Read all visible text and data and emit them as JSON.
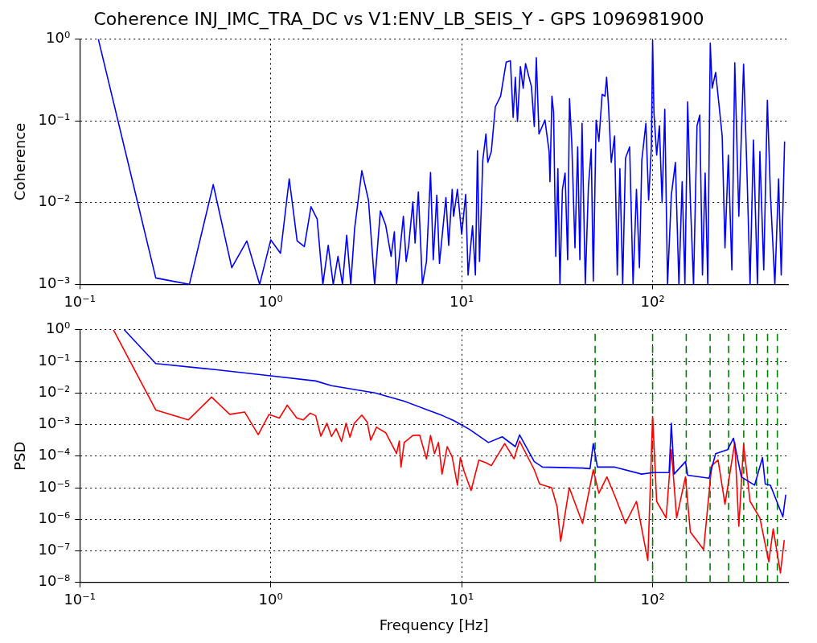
{
  "chart_data": [
    {
      "type": "line",
      "title": "Coherence INJ_IMC_TRA_DC vs V1:ENV_LB_SEIS_Y - GPS 1096981900",
      "ylabel": "Coherence",
      "log": "xy",
      "grid": true,
      "color": "#0000ff",
      "xlim": [
        0.1,
        512
      ],
      "xticks": [
        {
          "value": 0.1,
          "label": "10⁻¹"
        },
        {
          "value": 1,
          "label": "10⁰"
        },
        {
          "value": 10,
          "label": "10¹"
        },
        {
          "value": 100,
          "label": "10²"
        }
      ],
      "ylim": [
        0.001,
        1
      ],
      "yticks": [
        {
          "value": 0.001,
          "label": "10⁻³"
        },
        {
          "value": 0.01,
          "label": "10⁻²"
        },
        {
          "value": 0.1,
          "label": "10⁻¹"
        },
        {
          "value": 1,
          "label": "10⁰"
        }
      ],
      "x": [
        0.125,
        0.25,
        0.375,
        0.5,
        0.625,
        0.75,
        0.875,
        1.0,
        1.125,
        1.25,
        1.375,
        1.5,
        1.625,
        1.75,
        1.875,
        2.0,
        2.125,
        2.25,
        2.375,
        2.5,
        2.625,
        2.75,
        3.0,
        3.25,
        3.5,
        3.75,
        4.0,
        4.27,
        4.44,
        4.56,
        4.71,
        4.95,
        5.12,
        5.28,
        5.55,
        5.7,
        5.93,
        6.23,
        6.54,
        6.87,
        7.1,
        7.41,
        7.65,
        8.27,
        8.55,
        8.92,
        9.07,
        9.5,
        10,
        10.5,
        10.8,
        11.4,
        11.8,
        12.1,
        12.4,
        12.9,
        13.4,
        13.7,
        14.3,
        15,
        16,
        17.1,
        18,
        18.6,
        19.1,
        19.6,
        20.3,
        21,
        21.6,
        23.2,
        24,
        24.6,
        25.4,
        27.3,
        28.7,
        29,
        29.7,
        30.3,
        31.1,
        31.9,
        32.7,
        33.7,
        34.8,
        35.9,
        36.7,
        37.7,
        39.2,
        40.5,
        41.6,
        42.7,
        44.4,
        46.1,
        47.7,
        48.9,
        50.6,
        52.3,
        54.4,
        56.3,
        57.4,
        58.7,
        60.7,
        63.2,
        65.3,
        67.4,
        69.7,
        72.1,
        75.8,
        79,
        82.3,
        85.3,
        87.8,
        92.2,
        95.3,
        98.5,
        100,
        101.6,
        105,
        108.5,
        112.1,
        115.8,
        119.7,
        125.3,
        131.6,
        137.3,
        142.8,
        147.6,
        152.6,
        157.6,
        163.8,
        170.8,
        176.5,
        182.4,
        188.4,
        194.5,
        200.4,
        205,
        213.8,
        222.6,
        231.4,
        239.3,
        249.2,
        260,
        269.3,
        282.8,
        299.5,
        311.6,
        323.8,
        337.3,
        354,
        364.5,
        381.9,
        398.9,
        414.1,
        436.7,
        456.8,
        471.5,
        491.1
      ],
      "values": [
        1,
        0.0012,
        0.001,
        0.0166,
        0.0016,
        0.0034,
        0.001,
        0.0035,
        0.0024,
        0.0195,
        0.0034,
        0.0029,
        0.0089,
        0.0063,
        0.001,
        0.003,
        0.001,
        0.0022,
        0.001,
        0.004,
        0.001,
        0.0048,
        0.0245,
        0.0107,
        0.001,
        0.0079,
        0.0053,
        0.0022,
        0.0044,
        0.001,
        0.0021,
        0.0068,
        0.0019,
        0.003,
        0.0102,
        0.0032,
        0.0135,
        0.001,
        0.0019,
        0.0234,
        0.002,
        0.0123,
        0.0018,
        0.0115,
        0.003,
        0.0145,
        0.0068,
        0.0145,
        0.0041,
        0.0126,
        0.0013,
        0.0052,
        0.0013,
        0.043,
        0.0019,
        0.033,
        0.069,
        0.031,
        0.042,
        0.148,
        0.2,
        0.52,
        0.54,
        0.11,
        0.34,
        0.098,
        0.46,
        0.25,
        0.5,
        0.26,
        0.085,
        0.59,
        0.069,
        0.102,
        0.042,
        0.018,
        0.2,
        0.126,
        0.0022,
        0.026,
        0.001,
        0.0145,
        0.023,
        0.002,
        0.186,
        0.056,
        0.0028,
        0.048,
        0.002,
        0.093,
        0.001,
        0.0155,
        0.045,
        0.0011,
        0.102,
        0.056,
        0.21,
        0.2,
        0.34,
        0.158,
        0.031,
        0.065,
        0.0013,
        0.026,
        0.001,
        0.035,
        0.048,
        0.001,
        0.0145,
        0.0016,
        0.033,
        0.093,
        0.0107,
        0.048,
        0.96,
        0.126,
        0.038,
        0.087,
        0.01,
        0.138,
        0.001,
        0.0123,
        0.031,
        0.001,
        0.018,
        0.001,
        0.17,
        0.0107,
        0.001,
        0.087,
        0.117,
        0.0013,
        0.023,
        0.001,
        0.89,
        0.25,
        0.39,
        0.158,
        0.065,
        0.0028,
        0.038,
        0.0015,
        0.51,
        0.0068,
        0.49,
        0.026,
        0.001,
        0.058,
        0.001,
        0.042,
        0.0015,
        0.178,
        0.0123,
        0.001,
        0.0195,
        0.0013,
        0.056
      ]
    },
    {
      "type": "line",
      "xlabel": "Frequency [Hz]",
      "ylabel": "PSD",
      "log": "xy",
      "grid": true,
      "xlim": [
        0.1,
        512
      ],
      "xticks": [
        {
          "value": 0.1,
          "label": "10⁻¹"
        },
        {
          "value": 1,
          "label": "10⁰"
        },
        {
          "value": 10,
          "label": "10¹"
        },
        {
          "value": 100,
          "label": "10²"
        }
      ],
      "ylim": [
        1e-08,
        1
      ],
      "yticks": [
        {
          "value": 1e-08,
          "label": "10⁻⁸"
        },
        {
          "value": 1e-07,
          "label": "10⁻⁷"
        },
        {
          "value": 1e-06,
          "label": "10⁻⁶"
        },
        {
          "value": 1e-05,
          "label": "10⁻⁵"
        },
        {
          "value": 0.0001,
          "label": "10⁻⁴"
        },
        {
          "value": 0.001,
          "label": "10⁻³"
        },
        {
          "value": 0.01,
          "label": "10⁻²"
        },
        {
          "value": 0.1,
          "label": "10⁻¹"
        },
        {
          "value": 1,
          "label": "10⁰"
        }
      ],
      "ref_lines": [
        {
          "axis": "x",
          "value": 50,
          "color": "#008000",
          "line_style": "dashed"
        },
        {
          "axis": "x",
          "value": 100,
          "color": "#008000",
          "line_style": "dashed"
        },
        {
          "axis": "x",
          "value": 150,
          "color": "#008000",
          "line_style": "dashed"
        },
        {
          "axis": "x",
          "value": 200,
          "color": "#008000",
          "line_style": "dashed"
        },
        {
          "axis": "x",
          "value": 250,
          "color": "#008000",
          "line_style": "dashed"
        },
        {
          "axis": "x",
          "value": 300,
          "color": "#008000",
          "line_style": "dashed"
        },
        {
          "axis": "x",
          "value": 350,
          "color": "#008000",
          "line_style": "dashed"
        },
        {
          "axis": "x",
          "value": 400,
          "color": "#008000",
          "line_style": "dashed"
        },
        {
          "axis": "x",
          "value": 450,
          "color": "#008000",
          "line_style": "dashed"
        }
      ],
      "series": [
        {
          "color": "#0000ff",
          "x": [
            0.171,
            0.25,
            0.51,
            1.0,
            1.72,
            2.08,
            3.52,
            5.0,
            7.97,
            9.07,
            11,
            13.8,
            16.3,
            19.1,
            20.1,
            24,
            26.5,
            43,
            47,
            48.9,
            51.4,
            63.4,
            87.6,
            100,
            122,
            125.3,
            129.6,
            148.6,
            152.6,
            197.5,
            213.8,
            246.9,
            265,
            291.5,
            342,
            376,
            389,
            414,
            481,
            498
          ],
          "values": [
            1,
            0.085,
            0.055,
            0.035,
            0.024,
            0.017,
            0.01,
            0.0055,
            0.0019,
            0.00135,
            0.0007,
            0.00027,
            0.00041,
            0.0002,
            0.00047,
            6.7e-05,
            4.5e-05,
            4.2e-05,
            4e-05,
            0.00025,
            4.5e-05,
            4.5e-05,
            2.7e-05,
            3e-05,
            3e-05,
            0.0011,
            2.7e-05,
            6.7e-05,
            2.5e-05,
            2e-05,
            0.00012,
            0.00016,
            0.00037,
            2.2e-05,
            1.2e-05,
            9e-05,
            1.3e-05,
            1.2e-05,
            1.2e-06,
            6e-06
          ]
        },
        {
          "color": "#ff0000",
          "x": [
            0.15,
            0.25,
            0.37,
            0.49,
            0.61,
            0.73,
            0.86,
            0.98,
            1.11,
            1.22,
            1.37,
            1.48,
            1.61,
            1.72,
            1.83,
            1.97,
            2.08,
            2.2,
            2.35,
            2.48,
            2.6,
            2.74,
            3.0,
            3.2,
            3.34,
            3.58,
            4.0,
            4.56,
            4.71,
            4.81,
            5.0,
            5.55,
            6.03,
            6.54,
            6.87,
            7.2,
            7.56,
            7.89,
            8.4,
            8.92,
            9.5,
            9.84,
            10.3,
            11.2,
            12.3,
            13.4,
            14.3,
            16.8,
            18.8,
            20.1,
            24,
            25.6,
            29.6,
            31.6,
            33,
            36.6,
            43,
            48.9,
            52.3,
            57.6,
            63.4,
            72.1,
            82.3,
            94.4,
            100,
            105,
            117.7,
            125.3,
            133.6,
            148.6,
            157.6,
            185,
            203.8,
            220.2,
            239.3,
            269.3,
            282.8,
            299.5,
            323.8,
            364.5,
            406,
            428,
            467,
            489
          ],
          "values": [
            1,
            0.0029,
            0.0014,
            0.0074,
            0.0021,
            0.0025,
            0.00048,
            0.0021,
            0.0016,
            0.0041,
            0.0016,
            0.0014,
            0.0023,
            0.0019,
            0.00043,
            0.0011,
            0.00042,
            0.00074,
            0.00029,
            0.0011,
            0.0004,
            0.0011,
            0.002,
            0.0012,
            0.00032,
            0.00082,
            0.00055,
            0.00012,
            0.0003,
            4.5e-05,
            0.00027,
            0.00045,
            0.00046,
            8.2e-05,
            0.00045,
            0.00012,
            0.00027,
            2.7e-05,
            0.0002,
            9.4e-05,
            1.2e-05,
            9e-05,
            3.3e-05,
            8.2e-06,
            7.5e-05,
            6.2e-05,
            5e-05,
            0.00025,
            8.2e-05,
            0.0003,
            3.7e-05,
            1.3e-05,
            1e-05,
            2.5e-06,
            2e-07,
            1e-05,
            7.4e-07,
            3.7e-05,
            6.7e-06,
            2.2e-05,
            5.5e-06,
            7.4e-07,
            3.7e-06,
            5e-08,
            0.0018,
            3.7e-06,
            1.1e-06,
            0.00016,
            1.1e-06,
            2.2e-05,
            4e-07,
            1.1e-07,
            5e-05,
            7.5e-05,
            3e-06,
            0.00027,
            6e-07,
            0.00023,
            3.7e-06,
            1.1e-06,
            4.5e-08,
            5e-07,
            2e-08,
            2.2e-07
          ]
        }
      ]
    }
  ]
}
